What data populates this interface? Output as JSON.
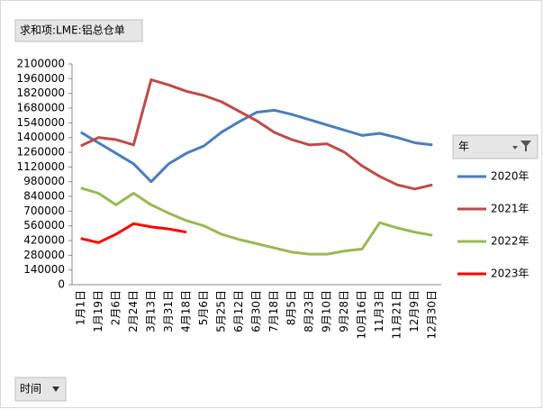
{
  "chart_data": {
    "type": "line",
    "field_button": "求和项:LME:铝总仓单",
    "axis_button": "时间",
    "legend_title": "年",
    "categories": [
      "1月1日",
      "1月19日",
      "2月6日",
      "2月24日",
      "3月13日",
      "3月31日",
      "4月18日",
      "5月6日",
      "5月25日",
      "6月12日",
      "6月30日",
      "7月18日",
      "8月5日",
      "8月23日",
      "9月10日",
      "9月28日",
      "10月16日",
      "11月3日",
      "11月21日",
      "12月9日",
      "12月30日"
    ],
    "series": [
      {
        "name": "2020年",
        "color": "#4a7ebb",
        "values": [
          1450000,
          1350000,
          1250000,
          1150000,
          980000,
          1150000,
          1250000,
          1320000,
          1450000,
          1550000,
          1640000,
          1660000,
          1620000,
          1570000,
          1520000,
          1470000,
          1420000,
          1440000,
          1400000,
          1350000,
          1330000
        ]
      },
      {
        "name": "2021年",
        "color": "#be4b48",
        "values": [
          1320000,
          1400000,
          1380000,
          1330000,
          1950000,
          1900000,
          1840000,
          1800000,
          1740000,
          1650000,
          1560000,
          1450000,
          1380000,
          1330000,
          1340000,
          1260000,
          1130000,
          1030000,
          950000,
          910000,
          950000
        ]
      },
      {
        "name": "2022年",
        "color": "#98b954",
        "values": [
          920000,
          870000,
          760000,
          870000,
          760000,
          680000,
          610000,
          560000,
          480000,
          430000,
          390000,
          350000,
          310000,
          290000,
          290000,
          320000,
          340000,
          590000,
          540000,
          500000,
          470000
        ]
      },
      {
        "name": "2023年",
        "color": "#ff0000",
        "values": [
          440000,
          400000,
          480000,
          580000,
          550000,
          530000,
          500000,
          null,
          null,
          null,
          null,
          null,
          null,
          null,
          null,
          null,
          null,
          null,
          null,
          null,
          null
        ]
      }
    ],
    "ylim": [
      0,
      2100000
    ],
    "yticks": [
      0,
      140000,
      280000,
      420000,
      560000,
      700000,
      840000,
      980000,
      1120000,
      1260000,
      1400000,
      1540000,
      1680000,
      1820000,
      1960000,
      2100000
    ],
    "grid": false,
    "legend": "right"
  }
}
